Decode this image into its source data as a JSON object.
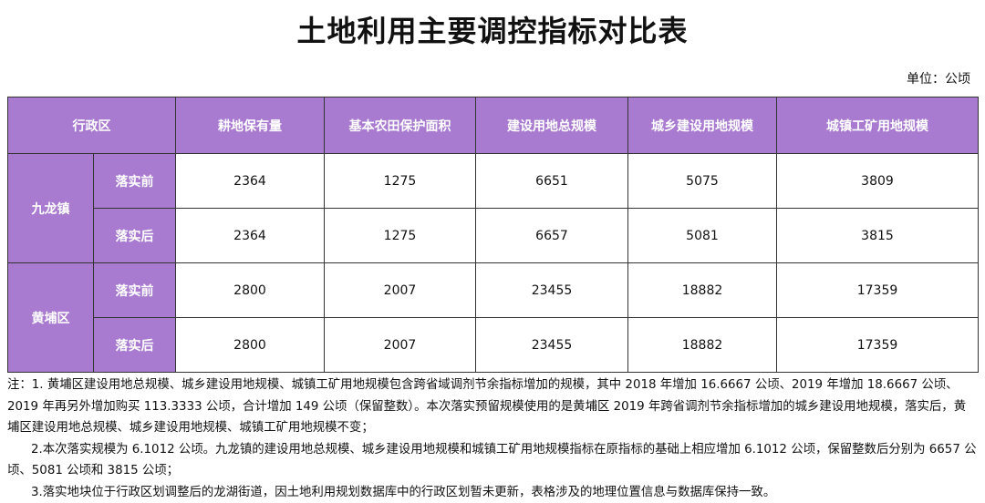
{
  "title": "土地利用主要调控指标对比表",
  "unit": "单位：公顷",
  "table": {
    "headers": [
      "行政区",
      "耕地保有量",
      "基本农田保护面积",
      "建设用地总规模",
      "城乡建设用地规模",
      "城镇工矿用地规模"
    ],
    "regions": [
      {
        "name": "九龙镇",
        "rows": [
          {
            "stage": "落实前",
            "values": [
              "2364",
              "1275",
              "6651",
              "5075",
              "3809"
            ]
          },
          {
            "stage": "落实后",
            "values": [
              "2364",
              "1275",
              "6657",
              "5081",
              "3815"
            ]
          }
        ]
      },
      {
        "name": "黄埔区",
        "rows": [
          {
            "stage": "落实前",
            "values": [
              "2800",
              "2007",
              "23455",
              "18882",
              "17359"
            ]
          },
          {
            "stage": "落实后",
            "values": [
              "2800",
              "2007",
              "23455",
              "18882",
              "17359"
            ]
          }
        ]
      }
    ]
  },
  "notes": [
    "注：1. 黄埔区建设用地总规模、城乡建设用地规模、城镇工矿用地规模包含跨省域调剂节余指标增加的规模，其中 2018 年增加 16.6667 公顷、2019 年增加 18.6667 公顷、2019 年再另外增加购买 113.3333 公顷，合计增加 149 公顷（保留整数）。本次落实预留规模使用的是黄埔区 2019 年跨省调剂节余指标增加的城乡建设用地规模，落实后，黄埔区建设用地总规模、城乡建设用地规模、城镇工矿用地规模不变；",
    "2.本次落实规模为 6.1012 公顷。九龙镇的建设用地总规模、城乡建设用地规模和城镇工矿用地规模指标在原指标的基础上相应增加 6.1012 公顷，保留整数后分别为 6657 公顷、5081 公顷和 3815 公顷；",
    "3.落实地块位于行政区划调整后的龙湖街道，因土地利用规划数据库中的行政区划暂未更新，表格涉及的地理位置信息与数据库保持一致。"
  ]
}
